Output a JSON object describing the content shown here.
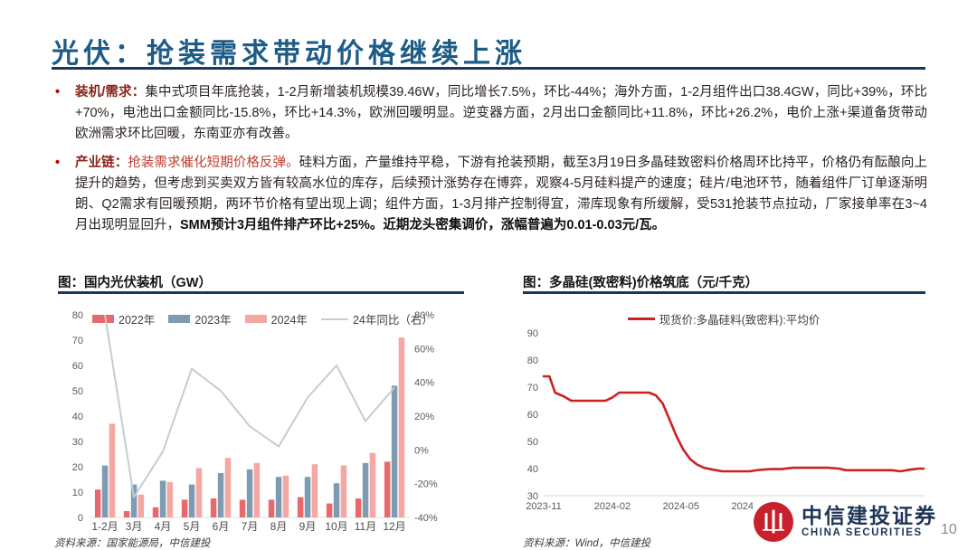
{
  "slide": {
    "title": "光伏：抢装需求带动价格继续上涨",
    "page_number": "10"
  },
  "colors": {
    "title_blue": "#1C5C86",
    "rule_navy": "#17375E",
    "brand_red": "#C8202C",
    "bullet_dark_red": "#8A241B",
    "highlight_red": "#BE3D2E"
  },
  "bullets": {
    "b1": {
      "marker": "•",
      "label": "装机/需求：",
      "body": "集中式项目年底抢装，1-2月新增装机规模39.46W，同比增长7.5%，环比-44%；海外方面，1-2月组件出口38.4GW，同比+39%，环比+70%，电池出口金额同比-15.8%，环比+14.3%，欧洲回暖明显。逆变器方面，2月出口金额同比+11.8%，环比+26.2%，电价上涨+渠道备货带动欧洲需求环比回暖，东南亚亦有改善。"
    },
    "b2": {
      "marker": "•",
      "label": "产业链：",
      "highlight": "抢装需求催化短期价格反弹。",
      "body": "硅料方面，产量维持平稳，下游有抢装预期，截至3月19日多晶硅致密料价格周环比持平，价格仍有酝酿向上提升的趋势，但考虑到买卖双方皆有较高水位的库存，后续预计涨势存在博弈，观察4-5月硅料提产的速度；硅片/电池环节，随着组件厂订单逐渐明朗、Q2需求有回暖预期，两环节价格有望出现上调；组件方面，1-3月排产控制得宜，滞库现象有所缓解，受531抢装节点拉动，厂家接单率在3~4月出现明显回升，",
      "bold_tail": "SMM预计3月组件排产环比+25%。近期龙头密集调价，涨幅普遍为0.01-0.03元/瓦。"
    }
  },
  "chart_data": [
    {
      "type": "bar",
      "title": "图：国内光伏装机（GW）",
      "categories": [
        "1-2月",
        "3月",
        "4月",
        "5月",
        "6月",
        "7月",
        "8月",
        "9月",
        "10月",
        "11月",
        "12月"
      ],
      "series": [
        {
          "name": "2022年",
          "color": "#E8696B",
          "values": [
            11,
            2.5,
            4,
            7,
            7.5,
            7,
            7,
            8,
            5.5,
            7.5,
            22
          ]
        },
        {
          "name": "2023年",
          "color": "#7E9BB2",
          "values": [
            20.5,
            13,
            14.5,
            13,
            17.5,
            19,
            16,
            16,
            13.5,
            21.5,
            52
          ]
        },
        {
          "name": "2024年",
          "color": "#F3A8A4",
          "values": [
            37,
            9,
            14,
            19.5,
            23.5,
            21.5,
            16.5,
            21,
            20.5,
            25.5,
            71
          ]
        }
      ],
      "line_series": {
        "name": "24年同比（右）",
        "color": "#C3CDD3",
        "axis": "right",
        "values": [
          80,
          -28,
          -1,
          48,
          35,
          14,
          2,
          31,
          50,
          17,
          37
        ]
      },
      "ylim_left": [
        0,
        80
      ],
      "ylim_right": [
        -40,
        80
      ],
      "yticks_left": [
        0,
        10,
        20,
        30,
        40,
        50,
        60,
        70,
        80
      ],
      "yticks_right": [
        -40,
        -20,
        0,
        20,
        40,
        60,
        80
      ],
      "grid": "off",
      "legend_position": "top",
      "source": "资料来源：国家能源局，中信建投"
    },
    {
      "type": "line",
      "title": "图：多晶硅(致密料)价格筑底（元/千克）",
      "legend": "现货价:多晶硅料(致密料):平均价",
      "color": "#CE2020",
      "ylim": [
        30,
        90
      ],
      "yticks": [
        30,
        40,
        50,
        60,
        70,
        80,
        90
      ],
      "xticks": [
        "2023-11",
        "2024-02",
        "2024-05",
        "2024-08",
        "2024-11",
        "2025-02"
      ],
      "xtick_months": [
        0,
        3,
        6,
        9,
        12,
        15
      ],
      "x_range_months": [
        0,
        16.6
      ],
      "points": [
        [
          0,
          74
        ],
        [
          0.25,
          74
        ],
        [
          0.5,
          68
        ],
        [
          0.9,
          66.5
        ],
        [
          1.2,
          65
        ],
        [
          2.7,
          65
        ],
        [
          3.0,
          66.2
        ],
        [
          3.3,
          68
        ],
        [
          4.6,
          68
        ],
        [
          4.9,
          67
        ],
        [
          5.2,
          64
        ],
        [
          5.5,
          58
        ],
        [
          5.8,
          52
        ],
        [
          6.1,
          47
        ],
        [
          6.4,
          43.5
        ],
        [
          6.7,
          41.5
        ],
        [
          7.0,
          40.3
        ],
        [
          7.4,
          39.6
        ],
        [
          7.8,
          39
        ],
        [
          9.0,
          39
        ],
        [
          9.4,
          39.5
        ],
        [
          9.9,
          39.8
        ],
        [
          10.4,
          39.8
        ],
        [
          10.9,
          40.3
        ],
        [
          12.4,
          40.3
        ],
        [
          12.9,
          40
        ],
        [
          13.2,
          39.4
        ],
        [
          15.2,
          39.4
        ],
        [
          15.6,
          39
        ],
        [
          16.0,
          39.6
        ],
        [
          16.4,
          40
        ],
        [
          16.6,
          40
        ]
      ],
      "grid": "off",
      "legend_position": "top",
      "source": "资料来源：Wind，中信建投"
    }
  ],
  "footer": {
    "logo_cn": "中信建投证券",
    "logo_en": "CHINA SECURITIES"
  }
}
